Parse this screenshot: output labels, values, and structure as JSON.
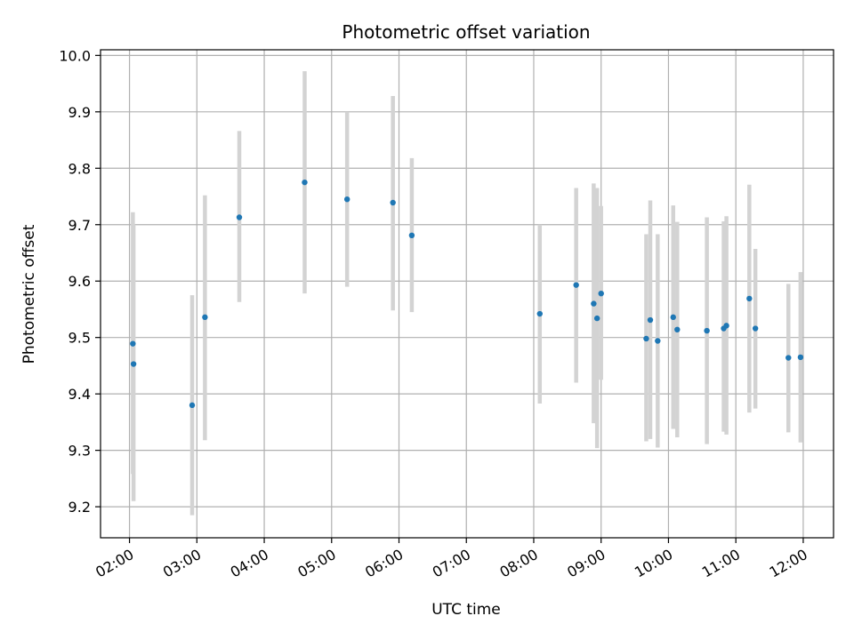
{
  "chart_data": {
    "type": "scatter",
    "title": "Photometric offset variation",
    "xlabel": "UTC time",
    "ylabel": "Photometric offset",
    "x_unit": "hours UTC",
    "xlim": [
      1.57,
      12.45
    ],
    "ylim": [
      9.145,
      10.01
    ],
    "x_ticks": [
      {
        "value": 2,
        "label": "02:00"
      },
      {
        "value": 3,
        "label": "03:00"
      },
      {
        "value": 4,
        "label": "04:00"
      },
      {
        "value": 5,
        "label": "05:00"
      },
      {
        "value": 6,
        "label": "06:00"
      },
      {
        "value": 7,
        "label": "07:00"
      },
      {
        "value": 8,
        "label": "08:00"
      },
      {
        "value": 9,
        "label": "09:00"
      },
      {
        "value": 10,
        "label": "10:00"
      },
      {
        "value": 11,
        "label": "11:00"
      },
      {
        "value": 12,
        "label": "12:00"
      }
    ],
    "y_ticks": [
      {
        "value": 9.2,
        "label": "9.2"
      },
      {
        "value": 9.3,
        "label": "9.3"
      },
      {
        "value": 9.4,
        "label": "9.4"
      },
      {
        "value": 9.5,
        "label": "9.5"
      },
      {
        "value": 9.6,
        "label": "9.6"
      },
      {
        "value": 9.7,
        "label": "9.7"
      },
      {
        "value": 9.8,
        "label": "9.8"
      },
      {
        "value": 9.9,
        "label": "9.9"
      },
      {
        "value": 10.0,
        "label": "10.0"
      }
    ],
    "grid": true,
    "marker_color": "#1f77b4",
    "errorbar_color": "#d3d3d3",
    "points": [
      {
        "x": 2.05,
        "y": 9.489,
        "yerr_low": 9.258,
        "yerr_high": 9.722
      },
      {
        "x": 2.06,
        "y": 9.453,
        "yerr_low": 9.21,
        "yerr_high": 9.7
      },
      {
        "x": 2.93,
        "y": 9.38,
        "yerr_low": 9.185,
        "yerr_high": 9.575
      },
      {
        "x": 3.12,
        "y": 9.536,
        "yerr_low": 9.318,
        "yerr_high": 9.752
      },
      {
        "x": 3.63,
        "y": 9.713,
        "yerr_low": 9.563,
        "yerr_high": 9.866
      },
      {
        "x": 4.6,
        "y": 9.775,
        "yerr_low": 9.578,
        "yerr_high": 9.972
      },
      {
        "x": 5.23,
        "y": 9.745,
        "yerr_low": 9.59,
        "yerr_high": 9.9
      },
      {
        "x": 5.91,
        "y": 9.739,
        "yerr_low": 9.548,
        "yerr_high": 9.928
      },
      {
        "x": 6.19,
        "y": 9.681,
        "yerr_low": 9.545,
        "yerr_high": 9.818
      },
      {
        "x": 8.09,
        "y": 9.542,
        "yerr_low": 9.383,
        "yerr_high": 9.7
      },
      {
        "x": 8.63,
        "y": 9.593,
        "yerr_low": 9.42,
        "yerr_high": 9.765
      },
      {
        "x": 8.89,
        "y": 9.56,
        "yerr_low": 9.348,
        "yerr_high": 9.773
      },
      {
        "x": 8.94,
        "y": 9.534,
        "yerr_low": 9.304,
        "yerr_high": 9.765
      },
      {
        "x": 9.0,
        "y": 9.578,
        "yerr_low": 9.425,
        "yerr_high": 9.733
      },
      {
        "x": 9.67,
        "y": 9.498,
        "yerr_low": 9.316,
        "yerr_high": 9.683
      },
      {
        "x": 9.73,
        "y": 9.531,
        "yerr_low": 9.32,
        "yerr_high": 9.743
      },
      {
        "x": 9.84,
        "y": 9.494,
        "yerr_low": 9.305,
        "yerr_high": 9.683
      },
      {
        "x": 10.07,
        "y": 9.536,
        "yerr_low": 9.338,
        "yerr_high": 9.734
      },
      {
        "x": 10.13,
        "y": 9.514,
        "yerr_low": 9.323,
        "yerr_high": 9.705
      },
      {
        "x": 10.57,
        "y": 9.512,
        "yerr_low": 9.311,
        "yerr_high": 9.713
      },
      {
        "x": 10.82,
        "y": 9.516,
        "yerr_low": 9.333,
        "yerr_high": 9.706
      },
      {
        "x": 10.86,
        "y": 9.521,
        "yerr_low": 9.328,
        "yerr_high": 9.715
      },
      {
        "x": 11.2,
        "y": 9.569,
        "yerr_low": 9.367,
        "yerr_high": 9.771
      },
      {
        "x": 11.29,
        "y": 9.516,
        "yerr_low": 9.374,
        "yerr_high": 9.657
      },
      {
        "x": 11.78,
        "y": 9.464,
        "yerr_low": 9.332,
        "yerr_high": 9.595
      },
      {
        "x": 11.96,
        "y": 9.465,
        "yerr_low": 9.314,
        "yerr_high": 9.616
      }
    ]
  }
}
